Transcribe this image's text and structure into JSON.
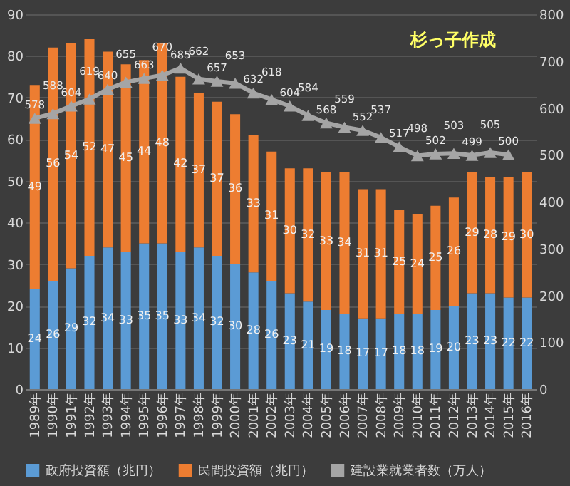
{
  "chart_data": {
    "type": "bar",
    "stacked": true,
    "categories": [
      "1989年",
      "1990年",
      "1991年",
      "1992年",
      "1993年",
      "1994年",
      "1995年",
      "1996年",
      "1997年",
      "1998年",
      "1999年",
      "2000年",
      "2001年",
      "2002年",
      "2003年",
      "2004年",
      "2005年",
      "2006年",
      "2007年",
      "2008年",
      "2009年",
      "2010年",
      "2011年",
      "2012年",
      "2013年",
      "2014年",
      "2015年",
      "2016年"
    ],
    "series": [
      {
        "name": "政府投資額（兆円）",
        "color": "#5b9bd5",
        "values": [
          24,
          26,
          29,
          32,
          34,
          33,
          35,
          35,
          33,
          34,
          32,
          30,
          28,
          26,
          23,
          21,
          19,
          18,
          17,
          17,
          18,
          18,
          19,
          20,
          23,
          23,
          22,
          22
        ]
      },
      {
        "name": "民間投資額（兆円）",
        "color": "#ed7d31",
        "values": [
          49,
          56,
          54,
          52,
          47,
          45,
          44,
          48,
          42,
          37,
          37,
          36,
          33,
          31,
          30,
          32,
          33,
          34,
          31,
          31,
          25,
          24,
          25,
          26,
          29,
          28,
          29,
          30
        ]
      },
      {
        "name": "建設業就業者数（万人）",
        "type": "line",
        "axis": "y2",
        "color": "#a5a5a5",
        "marker": "triangle",
        "values": [
          578,
          588,
          604,
          619,
          640,
          655,
          663,
          670,
          685,
          662,
          657,
          653,
          632,
          618,
          604,
          584,
          568,
          559,
          552,
          537,
          517,
          498,
          502,
          503,
          499,
          505,
          500,
          null
        ]
      }
    ],
    "ylim": [
      0,
      90
    ],
    "yticks": [
      0,
      10,
      20,
      30,
      40,
      50,
      60,
      70,
      80,
      90
    ],
    "y2lim": [
      0,
      800
    ],
    "y2ticks": [
      0,
      100,
      200,
      300,
      400,
      500,
      600,
      700,
      800
    ],
    "grid": "y",
    "legend": "bottom",
    "data_labels": true,
    "annotations": [
      "杉っ子作成"
    ]
  }
}
